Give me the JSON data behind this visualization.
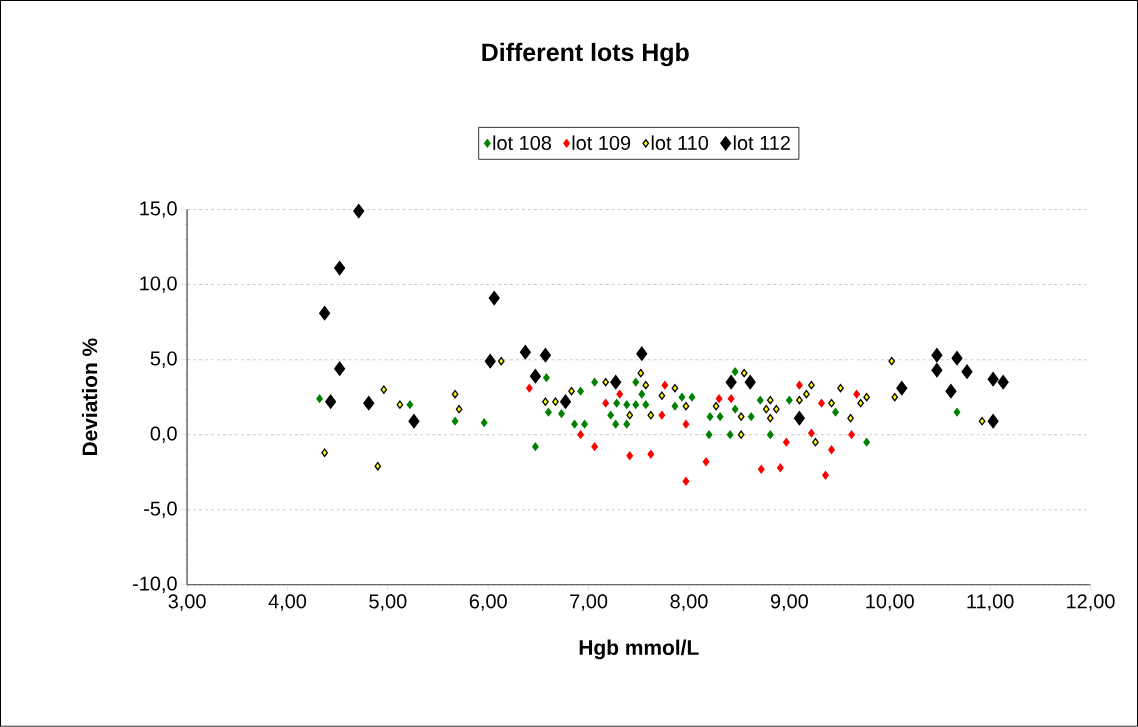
{
  "chart_data": {
    "type": "scatter",
    "title": "Different lots Hgb",
    "xlabel": "Hgb mmol/L",
    "ylabel": "Deviation %",
    "xlim": [
      3,
      12
    ],
    "ylim": [
      -10,
      15
    ],
    "xticks": [
      {
        "value": 3,
        "label": "3,00"
      },
      {
        "value": 4,
        "label": "4,00"
      },
      {
        "value": 5,
        "label": "5,00"
      },
      {
        "value": 6,
        "label": "6,00"
      },
      {
        "value": 7,
        "label": "7,00"
      },
      {
        "value": 8,
        "label": "8,00"
      },
      {
        "value": 9,
        "label": "9,00"
      },
      {
        "value": 10,
        "label": "10,00"
      },
      {
        "value": 11,
        "label": "11,00"
      },
      {
        "value": 12,
        "label": "12,00"
      }
    ],
    "yticks": [
      {
        "value": -10,
        "label": "-10,0"
      },
      {
        "value": -5,
        "label": "-5,0"
      },
      {
        "value": 0,
        "label": "0,0"
      },
      {
        "value": 5,
        "label": "5,0"
      },
      {
        "value": 10,
        "label": "10,0"
      },
      {
        "value": 15,
        "label": "15,0"
      }
    ],
    "grid": "y",
    "legend": "top",
    "marker": "diamond",
    "series": [
      {
        "name": "lot 108",
        "color": "#008000",
        "x": [
          4.32,
          5.22,
          5.67,
          5.96,
          6.47,
          6.58,
          6.6,
          6.73,
          6.92,
          6.86,
          6.96,
          7.06,
          7.22,
          7.28,
          7.38,
          7.27,
          7.38,
          7.47,
          7.53,
          7.47,
          7.57,
          7.86,
          7.93,
          8.03,
          8.21,
          8.31,
          8.2,
          8.41,
          8.46,
          8.46,
          8.62,
          8.71,
          8.81,
          9.0,
          9.46,
          9.77,
          10.67
        ],
        "values": [
          2.4,
          2.0,
          0.9,
          0.8,
          -0.8,
          3.8,
          1.5,
          1.4,
          2.9,
          0.7,
          0.7,
          3.5,
          1.3,
          2.1,
          2.0,
          0.7,
          0.7,
          3.5,
          2.7,
          2.0,
          2.0,
          1.9,
          2.5,
          2.5,
          1.2,
          1.2,
          0.0,
          0.0,
          4.2,
          1.7,
          1.2,
          2.3,
          0.0,
          2.3,
          1.5,
          -0.5,
          1.5
        ]
      },
      {
        "name": "lot 109",
        "color": "#ff0000",
        "x": [
          6.41,
          7.17,
          7.31,
          6.92,
          7.06,
          7.41,
          7.62,
          7.73,
          7.76,
          7.97,
          7.97,
          8.17,
          8.3,
          8.42,
          8.72,
          8.91,
          8.97,
          9.1,
          9.22,
          9.32,
          9.36,
          9.42,
          9.62,
          9.67
        ],
        "values": [
          3.1,
          2.1,
          2.7,
          0.0,
          -0.8,
          -1.4,
          -1.3,
          1.3,
          3.3,
          0.7,
          -3.1,
          -1.8,
          2.4,
          2.4,
          -2.3,
          -2.2,
          -0.5,
          3.3,
          0.1,
          2.1,
          -2.7,
          -1.0,
          0.0,
          2.7
        ]
      },
      {
        "name": "lot 110",
        "color": "#ffff00",
        "x": [
          4.37,
          4.9,
          4.96,
          5.12,
          5.67,
          5.71,
          6.13,
          6.57,
          6.67,
          6.83,
          7.17,
          7.41,
          7.52,
          7.57,
          7.62,
          7.73,
          7.86,
          7.97,
          8.27,
          8.52,
          8.52,
          8.55,
          8.77,
          8.81,
          8.81,
          8.87,
          9.1,
          9.17,
          9.22,
          9.26,
          9.42,
          9.51,
          9.61,
          9.71,
          9.77,
          10.02,
          10.05,
          10.92
        ],
        "values": [
          -1.2,
          -2.1,
          3.0,
          2.0,
          2.7,
          1.7,
          4.9,
          2.2,
          2.2,
          2.9,
          3.5,
          1.3,
          4.1,
          3.3,
          1.3,
          2.6,
          3.1,
          1.9,
          1.9,
          1.2,
          0.0,
          4.1,
          1.7,
          2.3,
          1.1,
          1.7,
          2.3,
          2.7,
          3.3,
          -0.5,
          2.1,
          3.1,
          1.1,
          2.1,
          2.5,
          4.9,
          2.5,
          0.9
        ]
      },
      {
        "name": "lot 112",
        "color": "#000000",
        "x": [
          4.37,
          4.43,
          4.52,
          4.52,
          4.71,
          4.81,
          5.26,
          6.02,
          6.06,
          6.37,
          6.47,
          6.57,
          6.77,
          7.27,
          7.53,
          8.42,
          8.61,
          9.1,
          10.12,
          10.47,
          10.47,
          10.61,
          10.67,
          10.77,
          11.03,
          11.03,
          11.13
        ],
        "values": [
          8.1,
          2.2,
          11.1,
          4.4,
          14.9,
          2.1,
          0.9,
          4.9,
          9.1,
          5.5,
          3.9,
          5.3,
          2.2,
          3.5,
          5.4,
          3.5,
          3.5,
          1.1,
          3.1,
          5.3,
          4.3,
          2.9,
          5.1,
          4.2,
          3.7,
          0.9,
          3.5
        ]
      }
    ]
  }
}
